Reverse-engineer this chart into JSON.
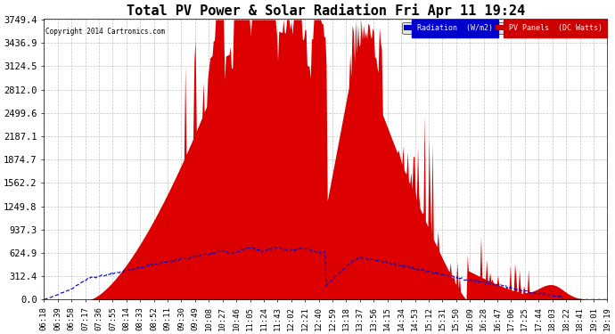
{
  "title": "Total PV Power & Solar Radiation Fri Apr 11 19:24",
  "copyright": "Copyright 2014 Cartronics.com",
  "yticks": [
    0.0,
    312.4,
    624.9,
    937.3,
    1249.8,
    1562.2,
    1874.7,
    2187.1,
    2499.6,
    2812.0,
    3124.5,
    3436.9,
    3749.4
  ],
  "ymax": 3749.4,
  "ymin": 0.0,
  "bg_color": "#ffffff",
  "plot_bg_color": "#ffffff",
  "grid_color": "#bbbbbb",
  "pv_color": "#dd0000",
  "radiation_color": "#0000cc",
  "legend_radiation_bg": "#0000cc",
  "legend_pv_bg": "#cc0000",
  "title_fontsize": 11,
  "xlabel_fontsize": 6.5,
  "ylabel_fontsize": 7.5,
  "xtick_labels": [
    "06:18",
    "06:39",
    "06:58",
    "07:17",
    "07:36",
    "07:55",
    "08:14",
    "08:33",
    "08:52",
    "09:11",
    "09:30",
    "09:49",
    "10:08",
    "10:27",
    "10:46",
    "11:05",
    "11:24",
    "11:43",
    "12:02",
    "12:21",
    "12:40",
    "12:59",
    "13:18",
    "13:37",
    "13:56",
    "14:15",
    "14:34",
    "14:53",
    "15:12",
    "15:31",
    "15:50",
    "16:09",
    "16:28",
    "16:47",
    "17:06",
    "17:25",
    "17:44",
    "18:03",
    "18:22",
    "18:41",
    "19:01",
    "19:19"
  ]
}
